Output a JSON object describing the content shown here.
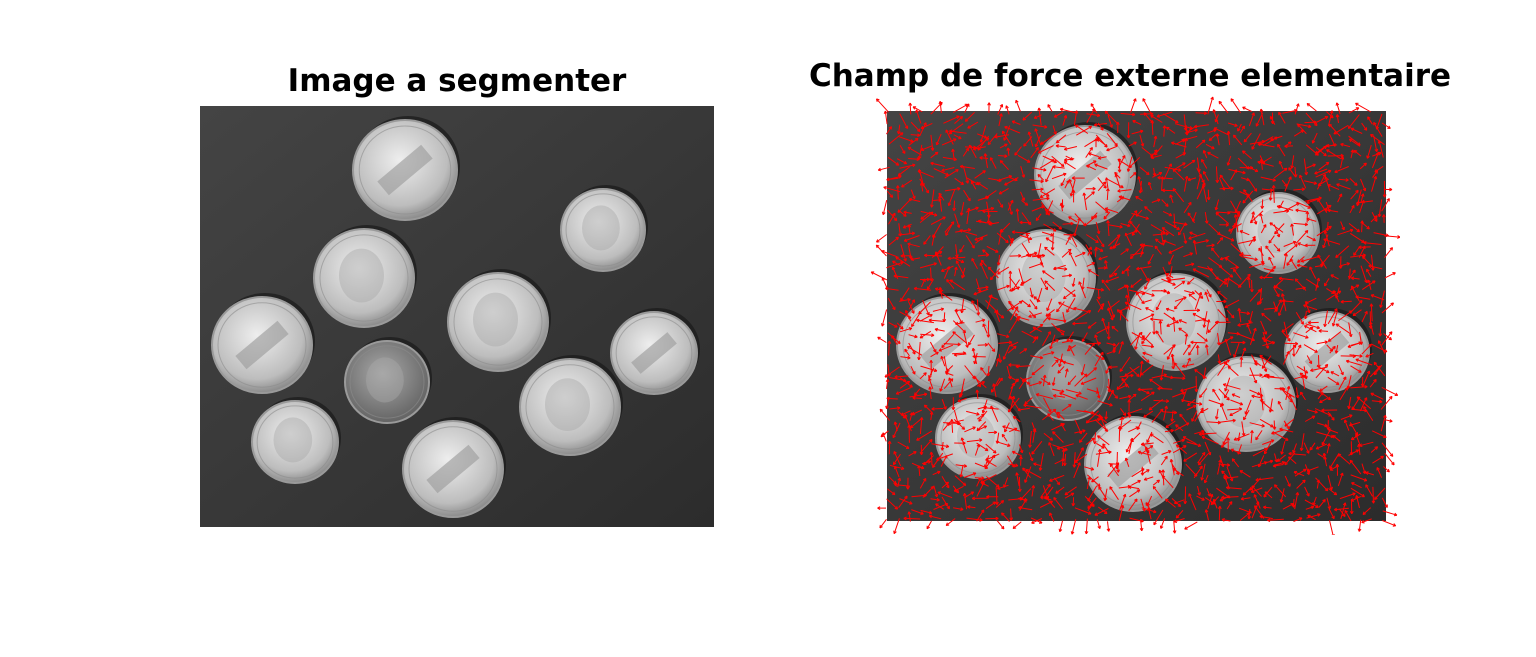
{
  "figure": {
    "left_title": "Image a segmenter",
    "right_title": "Champ de force externe elementaire"
  },
  "images": {
    "left": "grayscale photo of coins on dark background",
    "right": "same coins image overlaid with a field of small red arrows"
  },
  "colors": {
    "background": "#ffffff",
    "image_bg": "#3a3a3a",
    "coin_light": "#d8d8d8",
    "coin_dark": "#8a8a8a",
    "arrow": "#ff0000"
  }
}
